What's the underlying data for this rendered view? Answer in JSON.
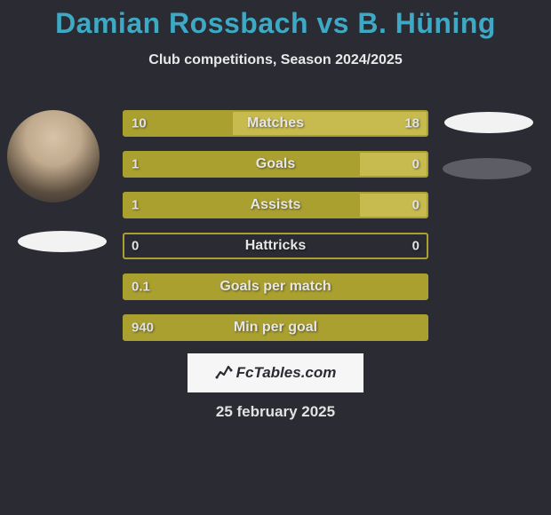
{
  "title": "Damian Rossbach vs B. Hüning",
  "subtitle": "Club competitions, Season 2024/2025",
  "date": "25 february 2025",
  "logo": {
    "text": "FcTables.com"
  },
  "colors": {
    "bar_primary": "#aaa030",
    "bar_border": "#aaa030",
    "bar_secondary": "#c7ba4f",
    "background": "#2b2b33",
    "title_color": "#3da9c4",
    "text_color": "#e6e6e6"
  },
  "bar_area_width": 340,
  "rows": [
    {
      "label": "Matches",
      "left": "10",
      "right": "18",
      "left_pct": 36,
      "right_pct": 64
    },
    {
      "label": "Goals",
      "left": "1",
      "right": "0",
      "left_pct": 78,
      "right_pct": 22
    },
    {
      "label": "Assists",
      "left": "1",
      "right": "0",
      "left_pct": 78,
      "right_pct": 22
    },
    {
      "label": "Hattricks",
      "left": "0",
      "right": "0",
      "left_pct": 0,
      "right_pct": 0
    },
    {
      "label": "Goals per match",
      "left": "0.1",
      "right": "",
      "left_pct": 100,
      "right_pct": 0
    },
    {
      "label": "Min per goal",
      "left": "940",
      "right": "",
      "left_pct": 100,
      "right_pct": 0
    }
  ]
}
